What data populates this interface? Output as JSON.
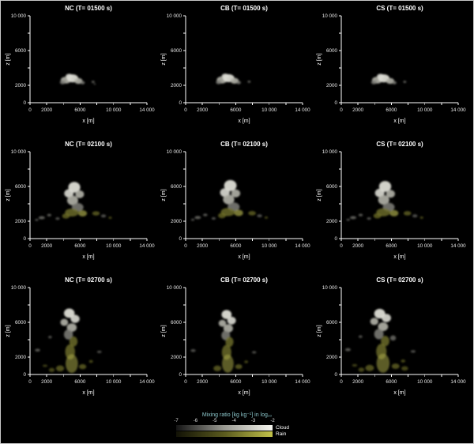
{
  "figure": {
    "background": "#000000",
    "border_color": "#c9c9c9",
    "axis_color": "#ffffff",
    "text_color": "#ffffff",
    "legend_title_color": "#8cc8cc",
    "palette": {
      "c1": "#dcdcd4",
      "c2": "#b2b2a8",
      "c3": "#80807a",
      "r1": "#a8a848",
      "r2": "#70702a"
    }
  },
  "chart_data": {
    "type": "heatmap",
    "xlabel": "x [m]",
    "ylabel": "z [m]",
    "xlim": [
      0,
      14000
    ],
    "zlim": [
      0,
      10000
    ],
    "x_ticks": [
      {
        "v": 0,
        "t": "0"
      },
      {
        "v": 2000,
        "t": "2000"
      },
      {
        "v": 4000,
        "t": ""
      },
      {
        "v": 6000,
        "t": "6000"
      },
      {
        "v": 8000,
        "t": ""
      },
      {
        "v": 10000,
        "t": "10 000"
      },
      {
        "v": 12000,
        "t": ""
      },
      {
        "v": 14000,
        "t": "14 000"
      }
    ],
    "z_ticks": [
      {
        "v": 0,
        "t": "0"
      },
      {
        "v": 2000,
        "t": "2000"
      },
      {
        "v": 4000,
        "t": ""
      },
      {
        "v": 6000,
        "t": "6000"
      },
      {
        "v": 8000,
        "t": ""
      },
      {
        "v": 10000,
        "t": "10 000"
      }
    ],
    "colorbar": {
      "title": "Mixing ratio [kg kg⁻¹] in log₁₀",
      "ticks": [
        "-7",
        "-6",
        "-5",
        "-4",
        "-3",
        "-2"
      ],
      "rows": [
        {
          "label": "Cloud",
          "gradient": [
            "#141414",
            "#9a9a92",
            "#f5f5ee"
          ]
        },
        {
          "label": "Rain",
          "gradient": [
            "#121206",
            "#5a5a1e",
            "#c2c24a"
          ]
        }
      ]
    },
    "panels": [
      {
        "id": "nc-01500",
        "title": "NC (T= 01500 s)",
        "blobs": [
          [
            4300,
            2600,
            620,
            400,
            "c2",
            0.9
          ],
          [
            5100,
            2800,
            680,
            460,
            "c1",
            0.95
          ],
          [
            5800,
            2500,
            500,
            340,
            "c2",
            0.9
          ],
          [
            4700,
            3050,
            430,
            280,
            "c1",
            0.9
          ],
          [
            3900,
            2350,
            330,
            240,
            "c3",
            0.8
          ],
          [
            6300,
            2300,
            260,
            190,
            "c3",
            0.8
          ],
          [
            7550,
            2400,
            180,
            130,
            "c3",
            0.7
          ],
          [
            7750,
            2150,
            120,
            90,
            "c3",
            0.6
          ]
        ]
      },
      {
        "id": "cb-01500",
        "title": "CB (T= 01500 s)",
        "blobs": [
          [
            4350,
            2620,
            630,
            410,
            "c2",
            0.9
          ],
          [
            5150,
            2820,
            690,
            460,
            "c1",
            0.95
          ],
          [
            5850,
            2520,
            510,
            340,
            "c2",
            0.9
          ],
          [
            4750,
            3070,
            430,
            280,
            "c1",
            0.9
          ],
          [
            3950,
            2360,
            330,
            240,
            "c3",
            0.8
          ],
          [
            6350,
            2320,
            260,
            190,
            "c3",
            0.8
          ],
          [
            7600,
            2420,
            180,
            130,
            "c3",
            0.7
          ]
        ]
      },
      {
        "id": "cs-01500",
        "title": "CS (T= 01500 s)",
        "blobs": [
          [
            4300,
            2600,
            620,
            400,
            "c2",
            0.9
          ],
          [
            5100,
            2800,
            680,
            460,
            "c1",
            0.95
          ],
          [
            5850,
            2500,
            500,
            340,
            "c2",
            0.9
          ],
          [
            4700,
            3050,
            430,
            280,
            "c1",
            0.9
          ],
          [
            3900,
            2350,
            330,
            240,
            "c3",
            0.8
          ],
          [
            6350,
            2300,
            260,
            190,
            "c3",
            0.8
          ],
          [
            7600,
            2400,
            180,
            130,
            "c3",
            0.7
          ]
        ]
      },
      {
        "id": "nc-02100",
        "title": "NC (T= 02100 s)",
        "blobs": [
          [
            5300,
            5900,
            720,
            620,
            "c1",
            0.95
          ],
          [
            4650,
            5200,
            560,
            480,
            "c1",
            0.9
          ],
          [
            5950,
            5100,
            520,
            450,
            "c2",
            0.9
          ],
          [
            5100,
            4400,
            660,
            560,
            "c2",
            0.9
          ],
          [
            5700,
            3600,
            700,
            500,
            "c3",
            0.85
          ],
          [
            5000,
            3000,
            820,
            460,
            "r2",
            0.8
          ],
          [
            6300,
            2900,
            520,
            360,
            "r1",
            0.7
          ],
          [
            4300,
            2600,
            460,
            300,
            "r2",
            0.75
          ],
          [
            1400,
            2400,
            380,
            180,
            "c3",
            0.7
          ],
          [
            2300,
            2700,
            260,
            150,
            "c3",
            0.65
          ],
          [
            800,
            2150,
            200,
            120,
            "c3",
            0.6
          ],
          [
            3300,
            2300,
            250,
            150,
            "c3",
            0.6
          ],
          [
            7900,
            2900,
            450,
            250,
            "r2",
            0.7
          ],
          [
            8800,
            2600,
            300,
            180,
            "c3",
            0.6
          ],
          [
            9600,
            2400,
            200,
            130,
            "r2",
            0.6
          ]
        ]
      },
      {
        "id": "cb-02100",
        "title": "CB (T= 02100 s)",
        "blobs": [
          [
            5350,
            6100,
            750,
            640,
            "c1",
            0.95
          ],
          [
            4700,
            5300,
            580,
            500,
            "c1",
            0.9
          ],
          [
            6000,
            5200,
            540,
            460,
            "c2",
            0.9
          ],
          [
            5150,
            4500,
            680,
            570,
            "c2",
            0.9
          ],
          [
            5750,
            3650,
            720,
            510,
            "c3",
            0.85
          ],
          [
            5050,
            3050,
            840,
            470,
            "r2",
            0.8
          ],
          [
            6350,
            2950,
            530,
            370,
            "r1",
            0.7
          ],
          [
            4350,
            2650,
            470,
            310,
            "r2",
            0.75
          ],
          [
            1450,
            2420,
            380,
            180,
            "c3",
            0.7
          ],
          [
            2350,
            2720,
            260,
            150,
            "c3",
            0.65
          ],
          [
            850,
            2170,
            200,
            120,
            "c3",
            0.6
          ],
          [
            3350,
            2320,
            250,
            150,
            "c3",
            0.6
          ],
          [
            7950,
            2920,
            460,
            260,
            "r2",
            0.7
          ],
          [
            8850,
            2620,
            300,
            180,
            "c3",
            0.6
          ],
          [
            9650,
            2420,
            200,
            130,
            "r2",
            0.6
          ]
        ]
      },
      {
        "id": "cs-02100",
        "title": "CS (T= 02100 s)",
        "blobs": [
          [
            5250,
            6000,
            730,
            630,
            "c1",
            0.95
          ],
          [
            4600,
            5250,
            570,
            490,
            "c1",
            0.9
          ],
          [
            5900,
            5150,
            530,
            450,
            "c2",
            0.9
          ],
          [
            5080,
            4450,
            670,
            560,
            "c2",
            0.9
          ],
          [
            5680,
            3620,
            710,
            505,
            "c3",
            0.85
          ],
          [
            5020,
            3020,
            830,
            465,
            "r2",
            0.8
          ],
          [
            6320,
            2920,
            525,
            365,
            "r1",
            0.7
          ],
          [
            4320,
            2620,
            465,
            305,
            "r2",
            0.75
          ],
          [
            1420,
            2410,
            380,
            180,
            "c3",
            0.7
          ],
          [
            2320,
            2710,
            260,
            150,
            "c3",
            0.65
          ],
          [
            820,
            2160,
            200,
            120,
            "c3",
            0.6
          ],
          [
            3320,
            2310,
            250,
            150,
            "c3",
            0.6
          ],
          [
            7920,
            2910,
            455,
            255,
            "r2",
            0.7
          ],
          [
            8820,
            2610,
            300,
            180,
            "c3",
            0.6
          ],
          [
            9620,
            2410,
            200,
            130,
            "r2",
            0.6
          ]
        ]
      },
      {
        "id": "nc-02700",
        "title": "NC (T= 02700 s)",
        "blobs": [
          [
            4700,
            7050,
            640,
            540,
            "c1",
            0.95
          ],
          [
            5400,
            6400,
            540,
            470,
            "c1",
            0.9
          ],
          [
            4100,
            6000,
            470,
            410,
            "c2",
            0.9
          ],
          [
            5000,
            5400,
            590,
            490,
            "c2",
            0.9
          ],
          [
            4600,
            4600,
            540,
            590,
            "c3",
            0.85
          ],
          [
            5200,
            3800,
            490,
            590,
            "r2",
            0.8
          ],
          [
            4800,
            2600,
            590,
            880,
            "r2",
            0.8
          ],
          [
            5000,
            1250,
            740,
            1080,
            "r1",
            0.55
          ],
          [
            3600,
            700,
            490,
            340,
            "r2",
            0.7
          ],
          [
            6300,
            900,
            440,
            290,
            "r2",
            0.7
          ],
          [
            2600,
            520,
            340,
            240,
            "r2",
            0.6
          ],
          [
            900,
            2800,
            310,
            170,
            "c3",
            0.65
          ],
          [
            2400,
            4300,
            210,
            150,
            "c3",
            0.6
          ],
          [
            8300,
            2600,
            270,
            140,
            "c3",
            0.6
          ],
          [
            7300,
            1500,
            240,
            170,
            "r2",
            0.6
          ],
          [
            1800,
            1000,
            290,
            140,
            "r2",
            0.55
          ]
        ]
      },
      {
        "id": "cb-02700",
        "title": "CB (T= 02700 s)",
        "blobs": [
          [
            4900,
            6900,
            600,
            520,
            "c1",
            0.95
          ],
          [
            5500,
            6200,
            520,
            450,
            "c1",
            0.9
          ],
          [
            4400,
            5900,
            450,
            400,
            "c2",
            0.9
          ],
          [
            5100,
            5300,
            570,
            480,
            "c2",
            0.9
          ],
          [
            4800,
            4500,
            520,
            570,
            "c3",
            0.85
          ],
          [
            5250,
            3750,
            480,
            580,
            "r2",
            0.8
          ],
          [
            4900,
            2550,
            570,
            860,
            "r2",
            0.8
          ],
          [
            5050,
            1250,
            700,
            1050,
            "r1",
            0.55
          ],
          [
            3800,
            700,
            470,
            330,
            "r2",
            0.7
          ],
          [
            6350,
            900,
            420,
            280,
            "r2",
            0.7
          ],
          [
            900,
            2750,
            300,
            165,
            "c3",
            0.6
          ],
          [
            8200,
            2550,
            260,
            140,
            "c3",
            0.6
          ],
          [
            7250,
            1450,
            230,
            160,
            "r2",
            0.6
          ]
        ]
      },
      {
        "id": "cs-02700",
        "title": "CS (T= 02700 s)",
        "blobs": [
          [
            4600,
            7000,
            660,
            560,
            "c1",
            0.95
          ],
          [
            5400,
            6500,
            560,
            480,
            "c1",
            0.9
          ],
          [
            3950,
            6100,
            490,
            420,
            "c2",
            0.9
          ],
          [
            5000,
            5500,
            610,
            500,
            "c2",
            0.9
          ],
          [
            4500,
            4650,
            560,
            600,
            "c3",
            0.85
          ],
          [
            5250,
            3850,
            510,
            600,
            "r2",
            0.8
          ],
          [
            4800,
            2650,
            620,
            900,
            "r2",
            0.8
          ],
          [
            5000,
            1300,
            780,
            1100,
            "r1",
            0.55
          ],
          [
            3400,
            750,
            520,
            360,
            "r2",
            0.7
          ],
          [
            6500,
            950,
            470,
            310,
            "r2",
            0.7
          ],
          [
            2400,
            550,
            360,
            250,
            "r2",
            0.6
          ],
          [
            7600,
            700,
            400,
            260,
            "r2",
            0.6
          ],
          [
            800,
            2850,
            330,
            180,
            "c3",
            0.65
          ],
          [
            2300,
            4350,
            230,
            160,
            "c3",
            0.6
          ],
          [
            8600,
            2650,
            290,
            150,
            "c3",
            0.6
          ],
          [
            7400,
            1550,
            260,
            180,
            "r2",
            0.6
          ],
          [
            1600,
            1050,
            310,
            150,
            "r2",
            0.55
          ],
          [
            6200,
            4200,
            350,
            300,
            "c3",
            0.7
          ]
        ]
      }
    ]
  }
}
